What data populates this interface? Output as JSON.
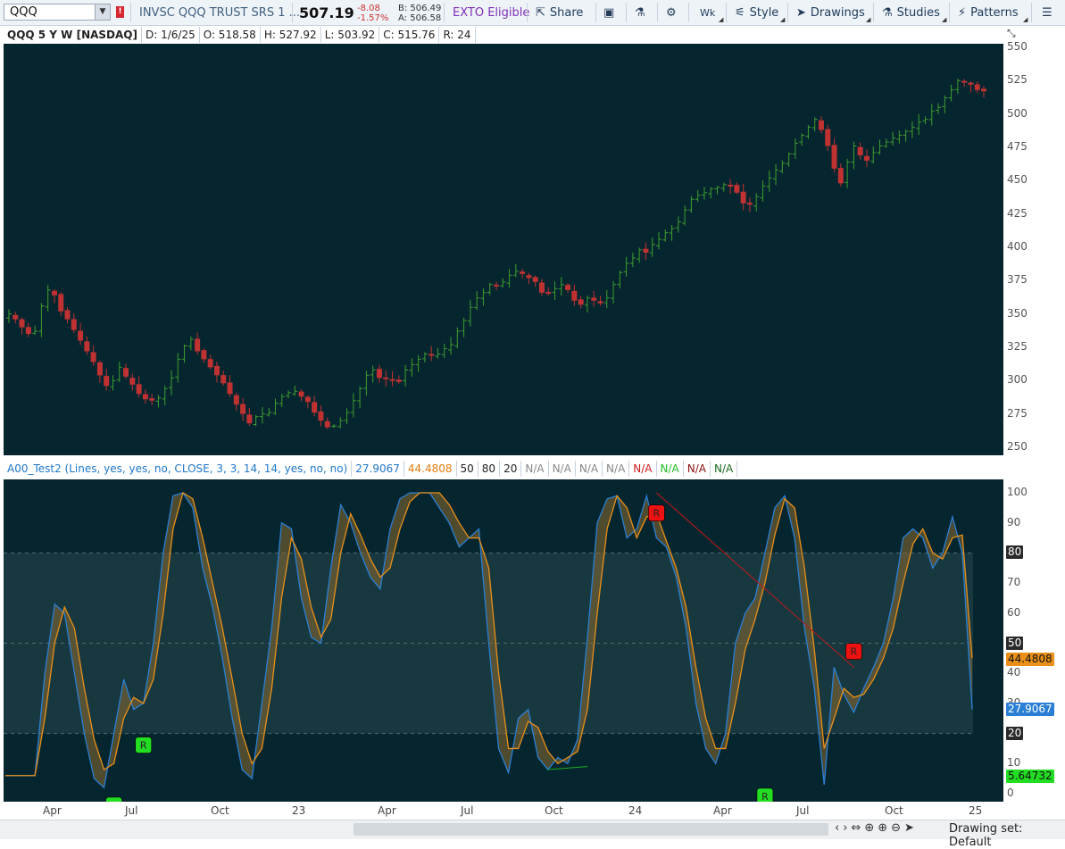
{
  "toolbar": {
    "symbol": "QQQ",
    "symbol_dropdown_icon": "chevron-down-icon",
    "alert_flag": "!",
    "description": "INVSC QQQ TRUST SRS 1 ...",
    "last_price": "507.19",
    "change": "-8.08",
    "change_pct": "-1.57%",
    "bid": "B: 506.49",
    "ask": "A: 506.58",
    "exto": "EXTO Eligible",
    "share": "Share",
    "timeframe": "Wk",
    "style": "Style",
    "drawings": "Drawings",
    "studies": "Studies",
    "patterns": "Patterns",
    "icons": [
      "share-icon",
      "snapshot-icon",
      "flask-icon",
      "gear-icon",
      "timeframe-icon",
      "style-icon",
      "cursor-icon",
      "studies-icon",
      "patterns-icon",
      "menu-icon"
    ],
    "negative_color": "#c8322c",
    "exto_color": "#7f2fb8"
  },
  "info_bar": {
    "title": "QQQ 5 Y W [NASDAQ]",
    "date": "D: 1/6/25",
    "open": "O: 518.58",
    "high": "H: 527.92",
    "low": "L: 503.92",
    "close": "C: 515.76",
    "range": "R: 24"
  },
  "price_axis": {
    "ticks": [
      "550",
      "525",
      "500",
      "475",
      "450",
      "425",
      "400",
      "375",
      "350",
      "325",
      "300",
      "275",
      "250"
    ],
    "tick_values": [
      550,
      525,
      500,
      475,
      450,
      425,
      400,
      375,
      350,
      325,
      300,
      275,
      250
    ],
    "collapse_icon": "collapse-icon"
  },
  "study_bar": {
    "name": "A00_Test2 (Lines, yes, yes, no, CLOSE, 3, 3, 14, 14, yes, no, no)",
    "value1": "27.9067",
    "value2": "44.4808",
    "v3": "50",
    "v4": "80",
    "v5": "20",
    "na": [
      "N/A",
      "N/A",
      "N/A",
      "N/A"
    ],
    "na_red": "N/A",
    "na_green": "N/A",
    "na_darkred": "N/A",
    "na_darkgreen": "N/A",
    "colors": {
      "blue": "#1f77c9",
      "orange": "#e07b10",
      "red": "#cc1b1b",
      "green": "#22bb22",
      "darkred": "#8b1010",
      "darkgreen": "#1e6b1e"
    }
  },
  "osc_axis": {
    "ticks": [
      "100",
      "90",
      "80",
      "70",
      "60",
      "50",
      "40",
      "30",
      "20",
      "10",
      "0"
    ],
    "tick_values": [
      100,
      90,
      80,
      70,
      60,
      50,
      40,
      30,
      20,
      10,
      0
    ],
    "boxed": [
      "80",
      "50",
      "20"
    ],
    "box_values": [
      80,
      50,
      20
    ],
    "orange_value": "44.4808",
    "orange_level": 44.48,
    "blue_value": "27.9067",
    "blue_level": 27.91,
    "green_value": "5.64732",
    "green_level": 5.65,
    "marker_label": "R",
    "colors": {
      "k": "#2a7fd4",
      "d": "#e9901a",
      "bull": "#22dd22",
      "bear": "#ee1111",
      "band": "#17383f"
    }
  },
  "time_axis": {
    "labels": [
      "Apr",
      "Jul",
      "Oct",
      "23",
      "Apr",
      "Jul",
      "Oct",
      "24",
      "Apr",
      "Jul",
      "Oct",
      "25"
    ]
  },
  "status_bar": {
    "drawing_set": "Drawing set: Default",
    "icons": [
      "scroll-left-icon",
      "scroll-right-icon",
      "pan-icon",
      "crosshair-icon",
      "zoom-in-icon",
      "zoom-out-icon",
      "cursor-icon"
    ]
  },
  "chart_data": [
    {
      "type": "candlestick",
      "title": "QQQ 5 Y W [NASDAQ]",
      "ylim": [
        250,
        550
      ],
      "x_ticks": [
        "Apr",
        "Jul",
        "Oct",
        "23",
        "Apr",
        "Jul",
        "Oct",
        "24",
        "Apr",
        "Jul",
        "Oct",
        "25"
      ],
      "y_ticks": [
        250,
        275,
        300,
        325,
        350,
        375,
        400,
        425,
        450,
        475,
        500,
        525,
        550
      ],
      "up_color": "#3e9c2e",
      "down_color": "#c03232",
      "closes": [
        350,
        346,
        340,
        335,
        337,
        356,
        368,
        364,
        352,
        346,
        338,
        330,
        322,
        314,
        304,
        296,
        300,
        310,
        303,
        297,
        290,
        286,
        285,
        287,
        294,
        302,
        316,
        326,
        331,
        322,
        316,
        310,
        304,
        298,
        290,
        282,
        275,
        268,
        273,
        275,
        276,
        283,
        288,
        291,
        292,
        288,
        284,
        276,
        270,
        265,
        266,
        270,
        276,
        285,
        294,
        304,
        308,
        302,
        301,
        300,
        299,
        308,
        312,
        316,
        320,
        319,
        320,
        324,
        327,
        337,
        345,
        355,
        362,
        366,
        372,
        371,
        374,
        379,
        382,
        380,
        377,
        374,
        366,
        366,
        369,
        372,
        368,
        360,
        357,
        362,
        360,
        358,
        362,
        372,
        381,
        388,
        392,
        398,
        396,
        402,
        406,
        411,
        414,
        419,
        428,
        436,
        439,
        441,
        444,
        445,
        447,
        446,
        441,
        433,
        432,
        438,
        446,
        452,
        458,
        463,
        470,
        478,
        484,
        490,
        496,
        488,
        476,
        459,
        448,
        464,
        476,
        469,
        465,
        471,
        476,
        479,
        482,
        484,
        487,
        490,
        494,
        496,
        502,
        505,
        512,
        518,
        525,
        524,
        522,
        518,
        517
      ]
    },
    {
      "type": "line",
      "title": "A00_Test2 (Lines, yes, yes, no, CLOSE, 3, 3, 14, 14, yes, no, no)",
      "ylim": [
        0,
        100
      ],
      "y_ticks": [
        0,
        10,
        20,
        30,
        40,
        50,
        60,
        70,
        80,
        90,
        100
      ],
      "levels": [
        80,
        50,
        20
      ],
      "series": [
        {
          "name": "27.9067",
          "color": "#2a7fd4",
          "values": [
            6,
            6,
            6,
            6,
            40,
            63,
            60,
            40,
            20,
            5,
            2,
            20,
            38,
            28,
            30,
            50,
            80,
            99,
            100,
            95,
            75,
            62,
            45,
            25,
            8,
            5,
            30,
            55,
            90,
            88,
            65,
            52,
            50,
            75,
            96,
            90,
            80,
            72,
            68,
            88,
            98,
            100,
            100,
            100,
            95,
            90,
            82,
            85,
            88,
            50,
            15,
            7,
            25,
            28,
            12,
            8,
            12,
            10,
            18,
            52,
            90,
            98,
            99,
            85,
            88,
            99,
            85,
            82,
            72,
            55,
            30,
            15,
            10,
            20,
            50,
            60,
            65,
            80,
            95,
            99,
            85,
            55,
            35,
            3,
            42,
            33,
            27,
            35,
            42,
            50,
            65,
            85,
            88,
            85,
            75,
            80,
            92,
            80,
            28
          ]
        },
        {
          "name": "44.4808",
          "color": "#e9901a",
          "values": [
            6,
            6,
            6,
            6,
            25,
            50,
            62,
            55,
            35,
            18,
            8,
            10,
            25,
            32,
            30,
            38,
            60,
            88,
            100,
            98,
            85,
            70,
            55,
            38,
            20,
            10,
            15,
            35,
            65,
            85,
            78,
            62,
            52,
            58,
            80,
            93,
            86,
            78,
            72,
            75,
            88,
            97,
            100,
            100,
            100,
            96,
            90,
            85,
            85,
            75,
            40,
            15,
            15,
            24,
            22,
            14,
            10,
            12,
            14,
            28,
            60,
            88,
            99,
            95,
            85,
            92,
            93,
            84,
            75,
            62,
            42,
            25,
            15,
            15,
            30,
            48,
            58,
            70,
            86,
            98,
            95,
            75,
            48,
            15,
            25,
            35,
            32,
            33,
            38,
            45,
            55,
            70,
            83,
            88,
            80,
            78,
            85,
            86,
            45
          ]
        }
      ],
      "markers": [
        {
          "label": "R",
          "kind": "bull",
          "x_index": 14,
          "y": 20
        },
        {
          "label": "R",
          "kind": "bull",
          "x_index": 11,
          "y": 0
        },
        {
          "label": "R",
          "kind": "bear",
          "x_index": 66,
          "y": 90
        },
        {
          "label": "R",
          "kind": "bull",
          "x_index": 77,
          "y": 3
        },
        {
          "label": "R",
          "kind": "bear",
          "x_index": 86,
          "y": 44
        }
      ]
    }
  ]
}
